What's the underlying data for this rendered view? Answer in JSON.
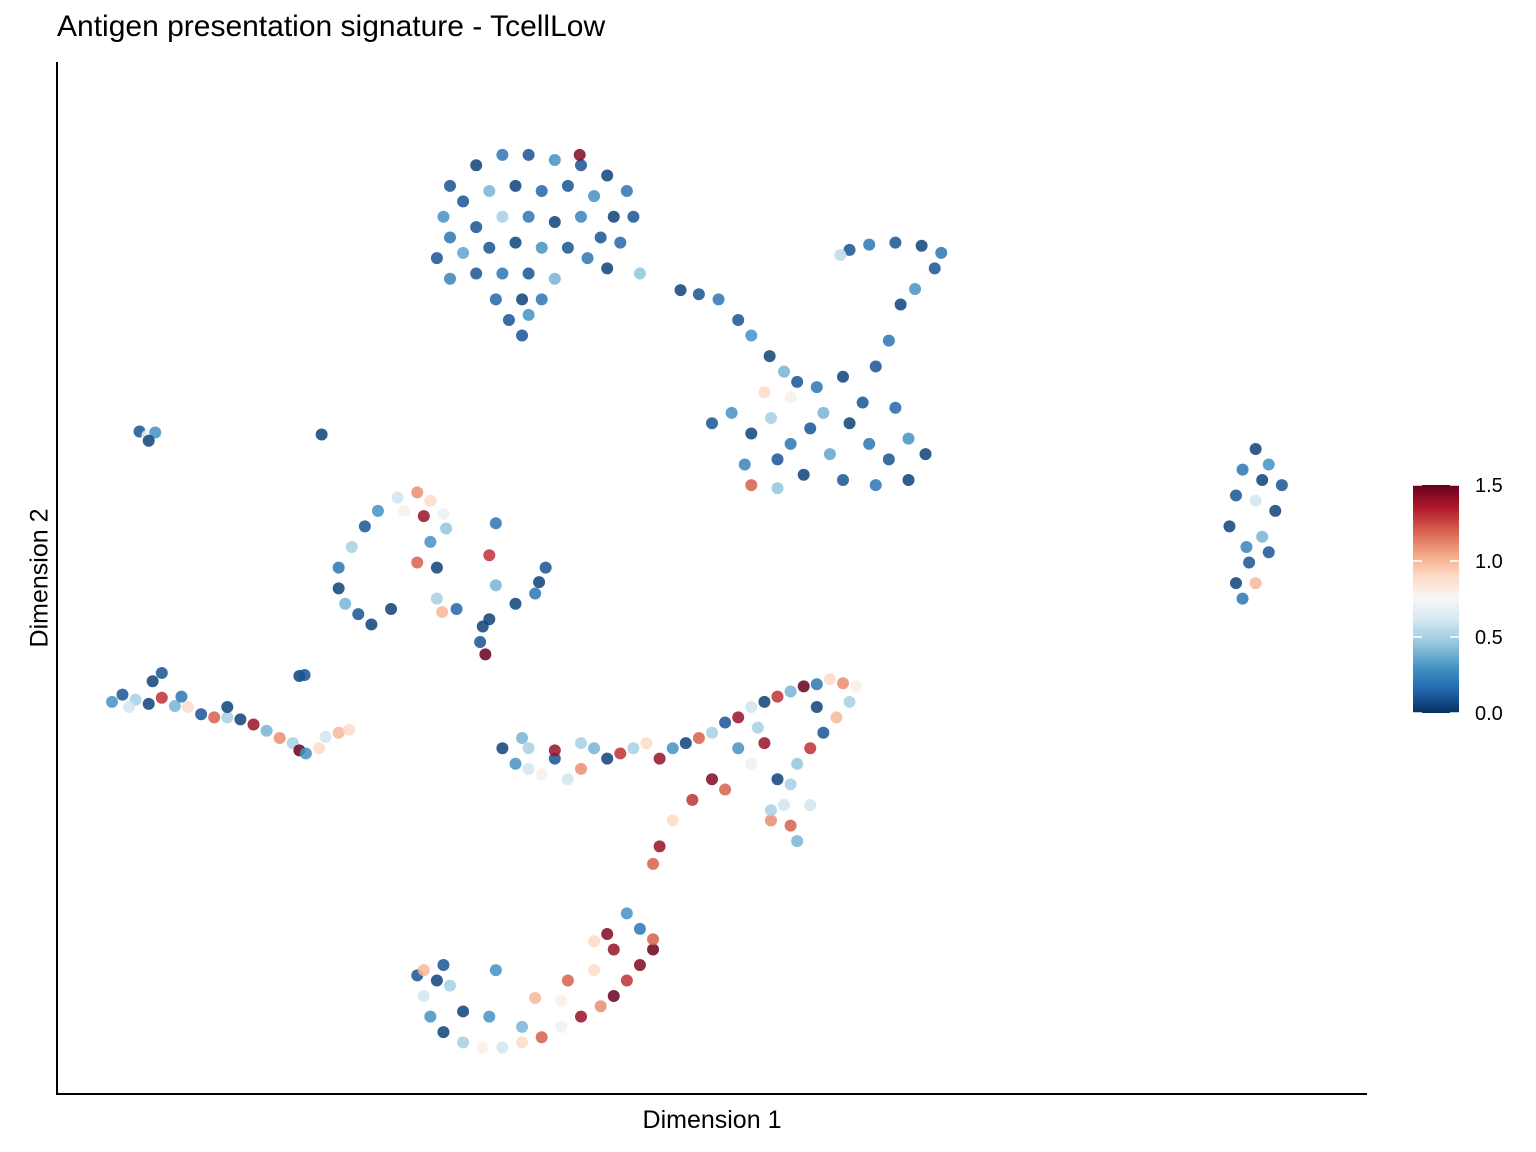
{
  "chart_data": {
    "type": "scatter",
    "title": "Antigen presentation signature - TcellLow",
    "xlabel": "Dimension 1",
    "ylabel": "Dimension 2",
    "xlim": [
      0,
      100
    ],
    "ylim": [
      0,
      100
    ],
    "grid": false,
    "point_fields": [
      "x",
      "y",
      "score"
    ],
    "colorbar": {
      "position": "right",
      "range": [
        0,
        1.5
      ],
      "ticks": [
        "0.0",
        "0.5",
        "1.0",
        "1.5"
      ],
      "tick_values": [
        0,
        0.5,
        1.0,
        1.5
      ],
      "palette": [
        "#053061",
        "#2166ac",
        "#4393c3",
        "#92c5de",
        "#d1e5f0",
        "#f7f7f7",
        "#fddbc7",
        "#f4a582",
        "#d6604d",
        "#b2182b",
        "#67001f"
      ]
    },
    "points": [
      [
        30,
        88,
        0.1
      ],
      [
        32,
        90,
        0.05
      ],
      [
        34,
        91,
        0.2
      ],
      [
        36,
        91,
        0.1
      ],
      [
        38,
        90.5,
        0.3
      ],
      [
        40,
        90,
        0.1
      ],
      [
        42,
        89,
        0.05
      ],
      [
        43.5,
        87.5,
        0.2
      ],
      [
        44,
        85,
        0.1
      ],
      [
        29.5,
        85,
        0.3
      ],
      [
        31,
        86.5,
        0.1
      ],
      [
        33,
        87.5,
        0.4
      ],
      [
        35,
        88,
        0.05
      ],
      [
        37,
        87.5,
        0.15
      ],
      [
        39,
        88,
        0.1
      ],
      [
        41,
        87,
        0.3
      ],
      [
        42.5,
        85,
        0.05
      ],
      [
        30,
        83,
        0.2
      ],
      [
        32,
        84,
        0.1
      ],
      [
        34,
        85,
        0.5
      ],
      [
        36,
        85,
        0.2
      ],
      [
        38,
        84.5,
        0.05
      ],
      [
        40,
        85,
        0.25
      ],
      [
        41.5,
        83,
        0.1
      ],
      [
        43,
        82.5,
        0.15
      ],
      [
        29,
        81,
        0.1
      ],
      [
        31,
        81.5,
        0.35
      ],
      [
        33,
        82,
        0.1
      ],
      [
        35,
        82.5,
        0.05
      ],
      [
        37,
        82,
        0.3
      ],
      [
        39,
        82,
        0.1
      ],
      [
        40.5,
        81,
        0.2
      ],
      [
        42,
        80,
        0.05
      ],
      [
        44.5,
        79.5,
        0.45
      ],
      [
        30,
        79,
        0.25
      ],
      [
        32,
        79.5,
        0.1
      ],
      [
        34,
        79.5,
        0.2
      ],
      [
        36,
        79.5,
        0.1
      ],
      [
        38,
        79,
        0.4
      ],
      [
        33.5,
        77,
        0.15
      ],
      [
        35.5,
        77,
        0.05
      ],
      [
        37,
        77,
        0.2
      ],
      [
        34.5,
        75,
        0.1
      ],
      [
        36,
        75.5,
        0.3
      ],
      [
        35.5,
        73.5,
        0.1
      ],
      [
        39.9,
        91,
        1.45
      ],
      [
        47.6,
        77.9,
        0.05
      ],
      [
        49,
        77.5,
        0.1
      ],
      [
        50.5,
        77,
        0.2
      ],
      [
        52,
        75,
        0.1
      ],
      [
        53,
        73.5,
        0.3
      ],
      [
        54.4,
        71.5,
        0.05
      ],
      [
        55.5,
        70,
        0.4
      ],
      [
        56.5,
        69,
        0.1
      ],
      [
        58,
        68.5,
        0.2
      ],
      [
        60,
        69.5,
        0.05
      ],
      [
        62.5,
        70.5,
        0.1
      ],
      [
        63.5,
        73,
        0.2
      ],
      [
        64.4,
        76.5,
        0.05
      ],
      [
        65.5,
        78,
        0.3
      ],
      [
        67,
        80,
        0.1
      ],
      [
        67.5,
        81.5,
        0.2
      ],
      [
        66,
        82.2,
        0.05
      ],
      [
        64,
        82.5,
        0.1
      ],
      [
        62,
        82.3,
        0.2
      ],
      [
        60.5,
        81.8,
        0.1
      ],
      [
        59.8,
        81.3,
        0.55
      ],
      [
        50,
        65,
        0.1
      ],
      [
        51.5,
        66,
        0.3
      ],
      [
        53,
        64,
        0.05
      ],
      [
        54.5,
        65.5,
        0.5
      ],
      [
        56,
        63,
        0.2
      ],
      [
        57.5,
        64.5,
        0.1
      ],
      [
        59,
        62,
        0.35
      ],
      [
        60.5,
        65,
        0.05
      ],
      [
        62,
        63,
        0.2
      ],
      [
        63.5,
        61.5,
        0.1
      ],
      [
        65,
        63.5,
        0.3
      ],
      [
        66.3,
        62,
        0.05
      ],
      [
        64,
        66.5,
        0.15
      ],
      [
        61.5,
        67,
        0.1
      ],
      [
        58.5,
        66,
        0.4
      ],
      [
        55,
        61.5,
        0.1
      ],
      [
        52.5,
        61,
        0.25
      ],
      [
        57,
        60,
        0.05
      ],
      [
        60,
        59.5,
        0.1
      ],
      [
        62.5,
        59,
        0.2
      ],
      [
        65,
        59.5,
        0.05
      ],
      [
        56,
        67.5,
        0.8
      ],
      [
        54,
        68,
        0.9
      ],
      [
        53,
        59,
        1.2
      ],
      [
        55,
        58.7,
        0.45
      ],
      [
        89.5,
        55,
        0.05
      ],
      [
        90,
        58,
        0.1
      ],
      [
        90.5,
        60.5,
        0.2
      ],
      [
        91.5,
        62.5,
        0.05
      ],
      [
        92.5,
        61,
        0.3
      ],
      [
        93.5,
        59,
        0.1
      ],
      [
        93,
        56.5,
        0.05
      ],
      [
        92,
        54,
        0.4
      ],
      [
        91,
        51.5,
        0.1
      ],
      [
        90,
        49.5,
        0.05
      ],
      [
        90.5,
        48,
        0.2
      ],
      [
        91.5,
        57.5,
        0.6
      ],
      [
        92,
        59.5,
        0.05
      ],
      [
        90.8,
        53,
        0.25
      ],
      [
        91.5,
        49.5,
        1.0
      ],
      [
        92.5,
        52.5,
        0.1
      ],
      [
        6.3,
        64.2,
        0.1
      ],
      [
        6.9,
        63.8,
        0.7
      ],
      [
        7.5,
        64.1,
        0.3
      ],
      [
        7,
        63.3,
        0.05
      ],
      [
        20.2,
        63.9,
        0.05
      ],
      [
        18.5,
        40.5,
        0.05
      ],
      [
        18.9,
        40.6,
        0.1
      ],
      [
        28.5,
        57.5,
        0.9
      ],
      [
        27.5,
        58.3,
        1.1
      ],
      [
        26,
        57.8,
        0.6
      ],
      [
        24.5,
        56.5,
        0.3
      ],
      [
        23.5,
        55,
        0.1
      ],
      [
        22.5,
        53,
        0.5
      ],
      [
        21.5,
        51,
        0.2
      ],
      [
        21.5,
        49,
        0.05
      ],
      [
        22,
        47.5,
        0.4
      ],
      [
        23,
        46.5,
        0.1
      ],
      [
        24,
        45.5,
        0.05
      ],
      [
        28,
        56,
        1.4
      ],
      [
        26.5,
        56.5,
        0.8
      ],
      [
        29.5,
        56.2,
        0.7
      ],
      [
        29.7,
        54.8,
        0.45
      ],
      [
        28.5,
        53.5,
        0.3
      ],
      [
        27.5,
        51.5,
        1.2
      ],
      [
        29,
        51,
        0.05
      ],
      [
        25.5,
        47,
        0.05
      ],
      [
        29,
        48,
        0.5
      ],
      [
        33.5,
        49.3,
        0.4
      ],
      [
        33.5,
        55.3,
        0.2
      ],
      [
        33,
        52.2,
        1.3
      ],
      [
        33,
        46,
        0.05
      ],
      [
        32.3,
        43.8,
        0.1
      ],
      [
        32.7,
        42.6,
        1.5
      ],
      [
        30.5,
        47,
        0.15
      ],
      [
        32.5,
        45.3,
        0.05
      ],
      [
        35,
        47.5,
        0.05
      ],
      [
        36.5,
        48.5,
        0.2
      ],
      [
        37.3,
        51,
        0.1
      ],
      [
        36.8,
        49.6,
        0.05
      ],
      [
        29.4,
        46.7,
        1.0
      ],
      [
        4.2,
        38,
        0.3
      ],
      [
        5,
        38.7,
        0.1
      ],
      [
        6,
        38.2,
        0.5
      ],
      [
        7,
        37.8,
        0.05
      ],
      [
        8,
        38.4,
        1.3
      ],
      [
        9,
        37.6,
        0.4
      ],
      [
        10,
        37.5,
        0.9
      ],
      [
        11,
        36.8,
        0.1
      ],
      [
        12,
        36.5,
        1.2
      ],
      [
        13,
        36.5,
        0.5
      ],
      [
        14,
        36.3,
        0.05
      ],
      [
        15,
        35.8,
        1.4
      ],
      [
        16,
        35.2,
        0.4
      ],
      [
        17,
        34.5,
        1.1
      ],
      [
        18,
        34,
        0.5
      ],
      [
        18.5,
        33.3,
        1.5
      ],
      [
        19,
        33,
        0.3
      ],
      [
        20,
        33.5,
        0.9
      ],
      [
        20.5,
        34.6,
        0.6
      ],
      [
        21.5,
        35,
        1.0
      ],
      [
        22.3,
        35.3,
        0.9
      ],
      [
        8,
        40.8,
        0.1
      ],
      [
        7.3,
        40,
        0.05
      ],
      [
        5.5,
        37.5,
        0.6
      ],
      [
        9.5,
        38.5,
        0.2
      ],
      [
        13,
        37.5,
        0.05
      ],
      [
        34,
        33.5,
        0.05
      ],
      [
        35,
        32,
        0.3
      ],
      [
        36,
        33.5,
        0.5
      ],
      [
        37,
        31,
        0.8
      ],
      [
        38,
        32.5,
        0.1
      ],
      [
        39,
        30.5,
        0.6
      ],
      [
        40,
        31.5,
        1.1
      ],
      [
        41,
        33.5,
        0.4
      ],
      [
        42,
        32.5,
        0.05
      ],
      [
        43,
        33,
        1.3
      ],
      [
        44,
        33.5,
        0.5
      ],
      [
        45,
        34,
        0.9
      ],
      [
        46,
        32.5,
        1.4
      ],
      [
        47,
        33.5,
        0.3
      ],
      [
        48,
        34,
        0.05
      ],
      [
        49,
        34.5,
        1.2
      ],
      [
        50,
        35,
        0.5
      ],
      [
        51,
        36,
        0.1
      ],
      [
        52,
        36.5,
        1.4
      ],
      [
        53,
        37.5,
        0.6
      ],
      [
        54,
        38,
        0.05
      ],
      [
        55,
        38.5,
        1.3
      ],
      [
        56,
        39,
        0.4
      ],
      [
        57,
        39.5,
        1.5
      ],
      [
        58,
        39.7,
        0.2
      ],
      [
        59,
        40.2,
        0.9
      ],
      [
        60,
        39.8,
        1.1
      ],
      [
        61,
        39.5,
        0.8
      ],
      [
        60.5,
        38,
        0.5
      ],
      [
        59.5,
        36.5,
        1.0
      ],
      [
        58.5,
        35,
        0.1
      ],
      [
        57.5,
        33.5,
        1.3
      ],
      [
        56.5,
        32,
        0.45
      ],
      [
        56,
        30,
        0.5
      ],
      [
        55.5,
        28,
        0.6
      ],
      [
        56,
        26,
        1.2
      ],
      [
        56.5,
        24.5,
        0.4
      ],
      [
        54.5,
        26.5,
        1.1
      ],
      [
        55,
        30.5,
        0.05
      ],
      [
        53,
        32,
        0.7
      ],
      [
        54,
        34,
        1.4
      ],
      [
        52,
        33.5,
        0.3
      ],
      [
        51,
        29.5,
        1.2
      ],
      [
        53.5,
        35.5,
        0.5
      ],
      [
        58,
        37.5,
        0.05
      ],
      [
        50,
        30.5,
        1.45
      ],
      [
        48.5,
        28.5,
        1.3
      ],
      [
        47,
        26.5,
        0.9
      ],
      [
        46,
        24,
        1.4
      ],
      [
        45.5,
        22.3,
        1.2
      ],
      [
        54.5,
        27.5,
        0.5
      ],
      [
        57.5,
        28,
        0.6
      ],
      [
        40,
        34,
        0.5
      ],
      [
        38,
        33.3,
        1.4
      ],
      [
        36,
        31.5,
        0.6
      ],
      [
        35.5,
        34.5,
        0.4
      ],
      [
        27.5,
        11.5,
        0.1
      ],
      [
        28,
        9.5,
        0.6
      ],
      [
        28.5,
        7.5,
        0.3
      ],
      [
        29.5,
        6,
        0.05
      ],
      [
        31,
        5,
        0.5
      ],
      [
        32.5,
        4.5,
        0.8
      ],
      [
        34,
        4.5,
        0.6
      ],
      [
        35.5,
        5,
        0.9
      ],
      [
        37,
        5.5,
        1.2
      ],
      [
        38.5,
        6.5,
        0.7
      ],
      [
        40,
        7.5,
        1.4
      ],
      [
        41.5,
        8.5,
        1.1
      ],
      [
        42.5,
        9.5,
        1.5
      ],
      [
        43.5,
        11,
        1.3
      ],
      [
        44.5,
        12.5,
        1.45
      ],
      [
        45.5,
        14,
        1.5
      ],
      [
        45.5,
        15,
        1.2
      ],
      [
        44.5,
        16,
        0.2
      ],
      [
        43.5,
        17.5,
        0.3
      ],
      [
        42.5,
        14,
        1.4
      ],
      [
        41,
        12,
        0.9
      ],
      [
        39,
        11,
        1.2
      ],
      [
        38.5,
        9,
        0.8
      ],
      [
        36.5,
        9.3,
        1.0
      ],
      [
        35.5,
        6.5,
        0.4
      ],
      [
        33,
        7.5,
        0.3
      ],
      [
        31,
        8,
        0.05
      ],
      [
        30,
        10.5,
        0.5
      ],
      [
        29,
        11,
        0.05
      ],
      [
        28,
        12,
        1.0
      ],
      [
        33.5,
        12,
        0.3
      ],
      [
        29.5,
        12.5,
        0.1
      ],
      [
        42,
        15.5,
        1.45
      ],
      [
        41,
        14.8,
        0.9
      ]
    ]
  }
}
